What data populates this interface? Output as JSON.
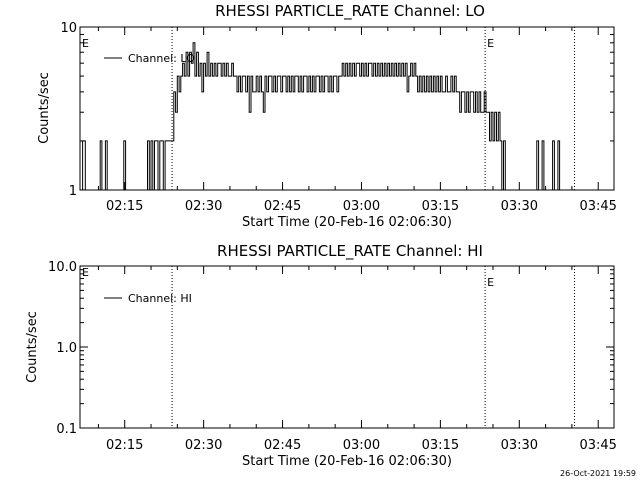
{
  "footer_date": "26-Oct-2021 19:59",
  "chart_data": [
    {
      "type": "line",
      "title": "RHESSI PARTICLE_RATE Channel: LO",
      "xlabel": "Start Time (20-Feb-16 02:06:30)",
      "ylabel": "Counts/sec",
      "y_scale": "log",
      "ylim": [
        1,
        10
      ],
      "ytick_labels": [
        "1",
        "10"
      ],
      "xlim": [
        "02:06:30",
        "03:48:00"
      ],
      "xtick_labels": [
        "02:15",
        "02:30",
        "02:45",
        "03:00",
        "03:15",
        "03:30",
        "03:45"
      ],
      "legend": {
        "text": "Channel: LO",
        "position": "top-left"
      },
      "event_lines": [
        {
          "time": "02:24:00",
          "marker": ""
        },
        {
          "time": "03:23:30",
          "marker": "E"
        },
        {
          "time": "03:40:30",
          "marker": ""
        }
      ],
      "corner_marker": "E",
      "series": [
        {
          "name": "Channel: LO",
          "points": [
            [
              "02:06:30",
              0.9
            ],
            [
              "02:07:00",
              2
            ],
            [
              "02:07:30",
              0.9
            ],
            [
              "02:10:00",
              0.9
            ],
            [
              "02:10:20",
              2
            ],
            [
              "02:10:40",
              0.9
            ],
            [
              "02:11:00",
              0.9
            ],
            [
              "02:11:20",
              2
            ],
            [
              "02:11:40",
              0.9
            ],
            [
              "02:14:30",
              0.9
            ],
            [
              "02:14:50",
              2
            ],
            [
              "02:15:10",
              0.9
            ],
            [
              "02:19:00",
              0.9
            ],
            [
              "02:19:20",
              2
            ],
            [
              "02:19:40",
              1
            ],
            [
              "02:20:00",
              2
            ],
            [
              "02:20:20",
              1
            ],
            [
              "02:20:40",
              2
            ],
            [
              "02:21:00",
              2
            ],
            [
              "02:21:20",
              1
            ],
            [
              "02:21:40",
              2
            ],
            [
              "02:22:00",
              2
            ],
            [
              "02:22:20",
              1
            ],
            [
              "02:22:40",
              2
            ],
            [
              "02:23:00",
              2
            ],
            [
              "02:23:30",
              2
            ],
            [
              "02:24:00",
              2
            ],
            [
              "02:24:20",
              4
            ],
            [
              "02:24:40",
              3
            ],
            [
              "02:25:00",
              5
            ],
            [
              "02:25:20",
              4
            ],
            [
              "02:25:40",
              5
            ],
            [
              "02:26:00",
              6
            ],
            [
              "02:26:20",
              5
            ],
            [
              "02:26:40",
              7
            ],
            [
              "02:27:00",
              5
            ],
            [
              "02:27:20",
              7
            ],
            [
              "02:27:40",
              6
            ],
            [
              "02:28:00",
              8
            ],
            [
              "02:28:20",
              5
            ],
            [
              "02:28:40",
              7
            ],
            [
              "02:29:00",
              5
            ],
            [
              "02:29:20",
              6
            ],
            [
              "02:29:40",
              4
            ],
            [
              "02:30:00",
              6
            ],
            [
              "02:30:20",
              5
            ],
            [
              "02:30:40",
              7
            ],
            [
              "02:31:00",
              5
            ],
            [
              "02:31:20",
              6
            ],
            [
              "02:31:40",
              5
            ],
            [
              "02:32:00",
              6
            ],
            [
              "02:32:20",
              5
            ],
            [
              "02:32:40",
              6
            ],
            [
              "02:33:00",
              6
            ],
            [
              "02:33:20",
              5
            ],
            [
              "02:33:40",
              6
            ],
            [
              "02:34:00",
              5
            ],
            [
              "02:34:20",
              6
            ],
            [
              "02:34:40",
              5
            ],
            [
              "02:35:00",
              5
            ],
            [
              "02:35:20",
              6
            ],
            [
              "02:35:40",
              5
            ],
            [
              "02:36:00",
              5
            ],
            [
              "02:36:20",
              4
            ],
            [
              "02:36:40",
              5
            ],
            [
              "02:37:00",
              4
            ],
            [
              "02:37:20",
              5
            ],
            [
              "02:37:40",
              5
            ],
            [
              "02:38:00",
              4
            ],
            [
              "02:38:20",
              5
            ],
            [
              "02:38:40",
              3
            ],
            [
              "02:39:00",
              5
            ],
            [
              "02:39:20",
              4
            ],
            [
              "02:39:40",
              4
            ],
            [
              "02:40:00",
              5
            ],
            [
              "02:40:20",
              4
            ],
            [
              "02:40:40",
              5
            ],
            [
              "02:41:00",
              4
            ],
            [
              "02:41:20",
              3
            ],
            [
              "02:41:40",
              5
            ],
            [
              "02:42:00",
              4
            ],
            [
              "02:42:20",
              5
            ],
            [
              "02:42:40",
              5
            ],
            [
              "02:43:00",
              4
            ],
            [
              "02:43:20",
              5
            ],
            [
              "02:43:40",
              4
            ],
            [
              "02:44:00",
              5
            ],
            [
              "02:44:20",
              5
            ],
            [
              "02:44:40",
              4
            ],
            [
              "02:45:00",
              5
            ],
            [
              "02:45:20",
              5
            ],
            [
              "02:45:40",
              4
            ],
            [
              "02:46:00",
              5
            ],
            [
              "02:46:20",
              4
            ],
            [
              "02:46:40",
              5
            ],
            [
              "02:47:00",
              4
            ],
            [
              "02:47:20",
              5
            ],
            [
              "02:47:40",
              5
            ],
            [
              "02:48:00",
              4
            ],
            [
              "02:48:20",
              5
            ],
            [
              "02:48:40",
              4
            ],
            [
              "02:49:00",
              5
            ],
            [
              "02:49:20",
              5
            ],
            [
              "02:49:40",
              4
            ],
            [
              "02:50:00",
              5
            ],
            [
              "02:50:20",
              4
            ],
            [
              "02:50:40",
              5
            ],
            [
              "02:51:00",
              4
            ],
            [
              "02:51:20",
              5
            ],
            [
              "02:51:40",
              5
            ],
            [
              "02:52:00",
              4
            ],
            [
              "02:52:20",
              5
            ],
            [
              "02:52:40",
              4
            ],
            [
              "02:53:00",
              5
            ],
            [
              "02:53:20",
              5
            ],
            [
              "02:53:40",
              4
            ],
            [
              "02:54:00",
              5
            ],
            [
              "02:54:20",
              4
            ],
            [
              "02:54:40",
              5
            ],
            [
              "02:55:00",
              5
            ],
            [
              "02:55:20",
              4
            ],
            [
              "02:55:40",
              5
            ],
            [
              "02:56:00",
              5
            ],
            [
              "02:56:20",
              6
            ],
            [
              "02:56:40",
              5
            ],
            [
              "02:57:00",
              6
            ],
            [
              "02:57:20",
              5
            ],
            [
              "02:57:40",
              6
            ],
            [
              "02:58:00",
              5
            ],
            [
              "02:58:20",
              6
            ],
            [
              "02:58:40",
              5
            ],
            [
              "02:59:00",
              6
            ],
            [
              "02:59:20",
              6
            ],
            [
              "02:59:40",
              5
            ],
            [
              "03:00:00",
              6
            ],
            [
              "03:00:20",
              5
            ],
            [
              "03:00:40",
              6
            ],
            [
              "03:01:00",
              5
            ],
            [
              "03:01:20",
              6
            ],
            [
              "03:01:40",
              6
            ],
            [
              "03:02:00",
              5
            ],
            [
              "03:02:20",
              6
            ],
            [
              "03:02:40",
              5
            ],
            [
              "03:03:00",
              6
            ],
            [
              "03:03:20",
              5
            ],
            [
              "03:03:40",
              6
            ],
            [
              "03:04:00",
              5
            ],
            [
              "03:04:20",
              6
            ],
            [
              "03:04:40",
              5
            ],
            [
              "03:05:00",
              6
            ],
            [
              "03:05:20",
              5
            ],
            [
              "03:05:40",
              6
            ],
            [
              "03:06:00",
              5
            ],
            [
              "03:06:20",
              6
            ],
            [
              "03:06:40",
              5
            ],
            [
              "03:07:00",
              6
            ],
            [
              "03:07:20",
              5
            ],
            [
              "03:07:40",
              6
            ],
            [
              "03:08:00",
              5
            ],
            [
              "03:08:20",
              6
            ],
            [
              "03:08:40",
              4
            ],
            [
              "03:09:00",
              5
            ],
            [
              "03:09:20",
              6
            ],
            [
              "03:09:40",
              5
            ],
            [
              "03:10:00",
              6
            ],
            [
              "03:10:20",
              5
            ],
            [
              "03:10:40",
              4
            ],
            [
              "03:11:00",
              5
            ],
            [
              "03:11:20",
              4
            ],
            [
              "03:11:40",
              5
            ],
            [
              "03:12:00",
              4
            ],
            [
              "03:12:20",
              5
            ],
            [
              "03:12:40",
              4
            ],
            [
              "03:13:00",
              5
            ],
            [
              "03:13:20",
              4
            ],
            [
              "03:13:40",
              5
            ],
            [
              "03:14:00",
              4
            ],
            [
              "03:14:20",
              5
            ],
            [
              "03:14:40",
              4
            ],
            [
              "03:15:00",
              5
            ],
            [
              "03:15:20",
              4
            ],
            [
              "03:15:40",
              4
            ],
            [
              "03:16:00",
              5
            ],
            [
              "03:16:20",
              4
            ],
            [
              "03:16:40",
              4
            ],
            [
              "03:17:00",
              5
            ],
            [
              "03:17:20",
              4
            ],
            [
              "03:17:40",
              5
            ],
            [
              "03:18:00",
              4
            ],
            [
              "03:18:20",
              4
            ],
            [
              "03:18:40",
              3
            ],
            [
              "03:19:00",
              4
            ],
            [
              "03:19:20",
              4
            ],
            [
              "03:19:40",
              3
            ],
            [
              "03:20:00",
              4
            ],
            [
              "03:20:20",
              3
            ],
            [
              "03:20:40",
              4
            ],
            [
              "03:21:00",
              4
            ],
            [
              "03:21:20",
              3
            ],
            [
              "03:21:40",
              4
            ],
            [
              "03:22:00",
              3
            ],
            [
              "03:22:20",
              4
            ],
            [
              "03:22:40",
              3
            ],
            [
              "03:23:00",
              3
            ],
            [
              "03:23:20",
              4
            ],
            [
              "03:23:40",
              3
            ],
            [
              "03:24:00",
              3
            ],
            [
              "03:24:20",
              2
            ],
            [
              "03:24:40",
              3
            ],
            [
              "03:25:00",
              2
            ],
            [
              "03:25:20",
              3
            ],
            [
              "03:25:40",
              2
            ],
            [
              "03:26:00",
              3
            ],
            [
              "03:26:20",
              2
            ],
            [
              "03:26:40",
              1
            ],
            [
              "03:27:00",
              2
            ],
            [
              "03:27:20",
              1
            ],
            [
              "03:27:40",
              0.9
            ],
            [
              "03:33:00",
              0.9
            ],
            [
              "03:33:20",
              2
            ],
            [
              "03:33:40",
              0.9
            ],
            [
              "03:34:00",
              0.9
            ],
            [
              "03:34:20",
              2
            ],
            [
              "03:34:40",
              0.9
            ],
            [
              "03:36:00",
              0.9
            ],
            [
              "03:36:20",
              2
            ],
            [
              "03:36:40",
              0.9
            ],
            [
              "03:37:00",
              0.9
            ],
            [
              "03:37:20",
              2
            ],
            [
              "03:37:40",
              0.9
            ],
            [
              "03:40:00",
              0.9
            ]
          ]
        }
      ]
    },
    {
      "type": "line",
      "title": "RHESSI PARTICLE_RATE Channel: HI",
      "xlabel": "Start Time (20-Feb-16 02:06:30)",
      "ylabel": "Counts/sec",
      "y_scale": "log",
      "ylim": [
        0.1,
        10
      ],
      "ytick_labels": [
        "0.1",
        "1.0",
        "10.0"
      ],
      "xlim": [
        "02:06:30",
        "03:48:00"
      ],
      "xtick_labels": [
        "02:15",
        "02:30",
        "02:45",
        "03:00",
        "03:15",
        "03:30",
        "03:45"
      ],
      "legend": {
        "text": "Channel: HI",
        "position": "top-left"
      },
      "event_lines": [
        {
          "time": "02:24:00",
          "marker": ""
        },
        {
          "time": "03:23:30",
          "marker": "E"
        },
        {
          "time": "03:40:30",
          "marker": ""
        }
      ],
      "corner_marker": "E",
      "series": [
        {
          "name": "Channel: HI",
          "points": []
        }
      ]
    }
  ]
}
